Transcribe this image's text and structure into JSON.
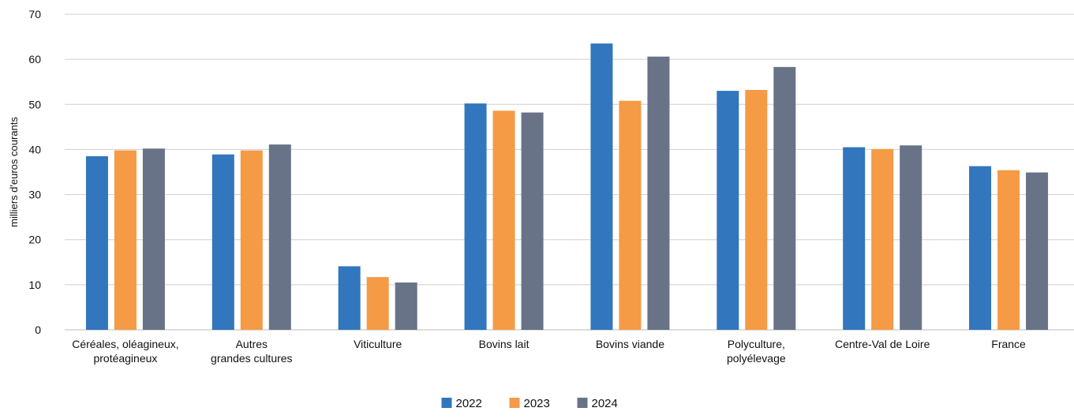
{
  "chart_data": {
    "type": "bar",
    "title": "",
    "xlabel": "",
    "ylabel": "milliers d'euros courants",
    "ylim": [
      0,
      70
    ],
    "yticks": [
      0,
      10,
      20,
      30,
      40,
      50,
      60,
      70
    ],
    "grid": true,
    "legend_position": "bottom-center",
    "categories": [
      [
        "Céréales, oléagineux,",
        "protéagineux"
      ],
      [
        "Autres",
        "grandes cultures"
      ],
      [
        "Viticulture"
      ],
      [
        "Bovins lait"
      ],
      [
        "Bovins viande"
      ],
      [
        "Polyculture,",
        "polyélevage"
      ],
      [
        "Centre-Val de Loire"
      ],
      [
        "France"
      ]
    ],
    "series": [
      {
        "name": "2022",
        "color": "#3276bd",
        "values": [
          38.5,
          38.9,
          14.1,
          50.2,
          63.5,
          53.0,
          40.5,
          36.3
        ]
      },
      {
        "name": "2023",
        "color": "#f59a45",
        "values": [
          39.8,
          39.8,
          11.7,
          48.6,
          50.8,
          53.2,
          40.1,
          35.4
        ]
      },
      {
        "name": "2024",
        "color": "#687387",
        "values": [
          40.2,
          41.1,
          10.5,
          48.2,
          60.6,
          58.3,
          40.9,
          34.9
        ]
      }
    ]
  }
}
